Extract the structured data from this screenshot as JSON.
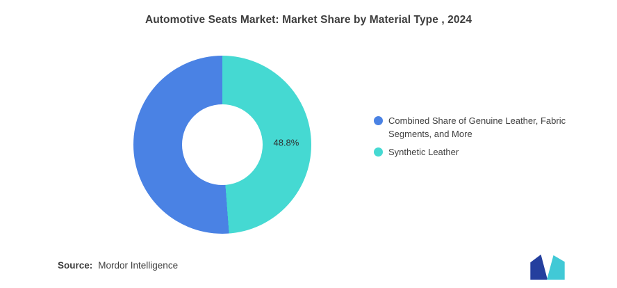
{
  "title": "Automotive Seats Market: Market Share by Material Type , 2024",
  "chart_data": {
    "type": "pie",
    "subtype": "donut",
    "start_angle_deg": 0,
    "direction": "clockwise",
    "hole_ratio": 0.45,
    "label_radius_px": 92,
    "series": [
      {
        "name": "Synthetic Leather",
        "value": 48.8,
        "color": "#45D9D2",
        "label": "48.8%"
      },
      {
        "name": "Combined Share of Genuine Leather, Fabric Segments, and More",
        "value": 51.2,
        "color": "#4A82E4",
        "label": ""
      }
    ],
    "title": "Automotive Seats Market: Market Share by Material Type , 2024",
    "legend_position": "right"
  },
  "legend": {
    "items": [
      {
        "label": "Combined Share of Genuine Leather, Fabric Segments, and More",
        "color": "#4A82E4"
      },
      {
        "label": "Synthetic Leather",
        "color": "#45D9D2"
      }
    ]
  },
  "source": {
    "label": "Source:",
    "value": "Mordor Intelligence"
  },
  "logo": {
    "name": "mordor-intelligence-logo",
    "color_left": "#243F9E",
    "color_right": "#41C9D6"
  }
}
